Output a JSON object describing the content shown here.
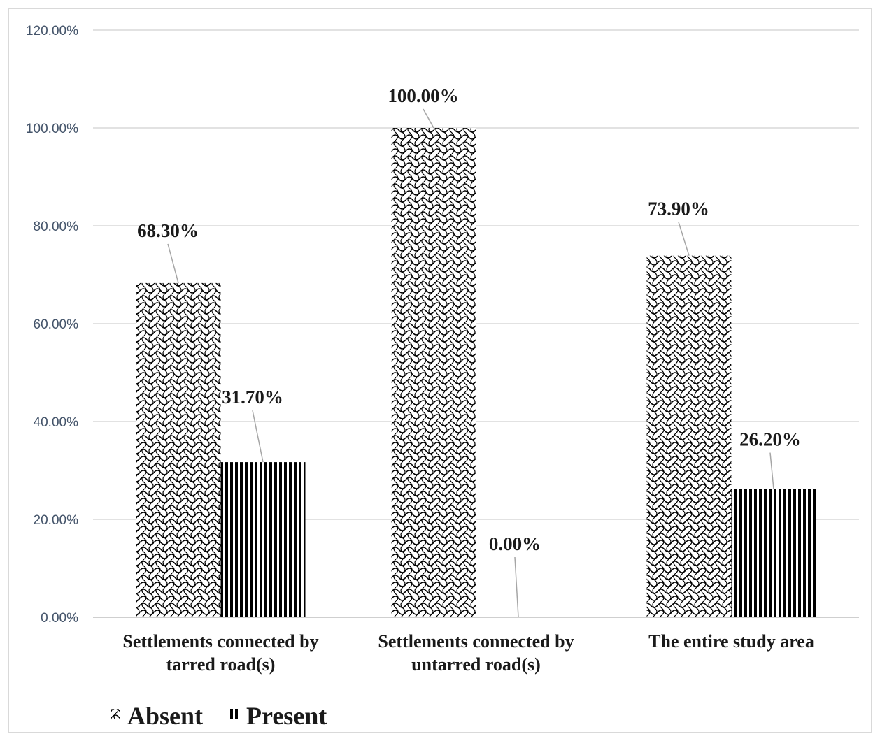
{
  "chart_data": {
    "type": "bar",
    "title": "",
    "xlabel": "",
    "ylabel": "",
    "ylim": [
      0,
      1.2
    ],
    "y_ticks": [
      0,
      0.2,
      0.4,
      0.6,
      0.8,
      1.0,
      1.2
    ],
    "y_tick_labels": [
      "0.00%",
      "20.00%",
      "40.00%",
      "60.00%",
      "80.00%",
      "100.00%",
      "120.00%"
    ],
    "categories": [
      [
        "Settlements connected by",
        "tarred road(s)"
      ],
      [
        "Settlements connected by",
        "untarred road(s)"
      ],
      [
        "The entire study area"
      ]
    ],
    "series": [
      {
        "name": "Absent",
        "pattern": "wave-crosshatch",
        "values": [
          0.683,
          1.0,
          0.739
        ],
        "labels": [
          "68.30%",
          "100.00%",
          "73.90%"
        ]
      },
      {
        "name": "Present",
        "pattern": "vertical-stripes",
        "values": [
          0.317,
          0.0,
          0.262
        ],
        "labels": [
          "31.70%",
          "0.00%",
          "26.20%"
        ]
      }
    ],
    "grid": true,
    "legend_position": "bottom-left",
    "colors": {
      "gridline": "#d9d9d9",
      "axis": "#bfbfbf",
      "leader": "#a6a6a6",
      "bar_ink": "#000000"
    }
  }
}
